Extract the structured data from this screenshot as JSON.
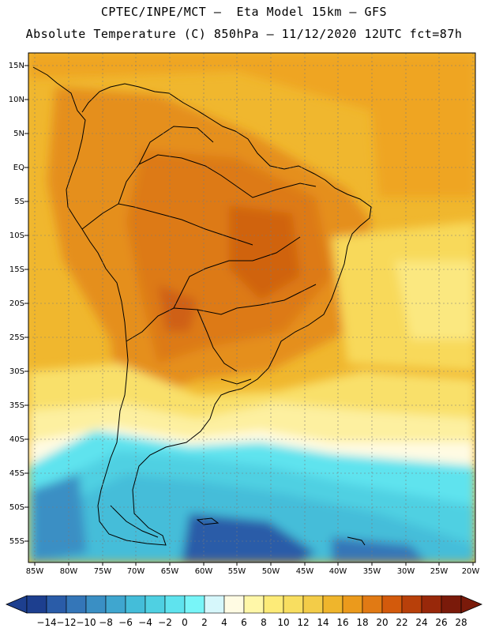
{
  "header": {
    "line1": "CPTEC/INPE/MCT —  Eta Model 15km — GFS",
    "line2": "Absolute Temperature (C) 850hPa — 11/12/2020 12UTC fct=87h"
  },
  "axes": {
    "lat_labels": [
      "15N",
      "10N",
      "5N",
      "EQ",
      "5S",
      "10S",
      "15S",
      "20S",
      "25S",
      "30S",
      "35S",
      "40S",
      "45S",
      "50S",
      "55S"
    ],
    "lon_labels": [
      "85W",
      "80W",
      "75W",
      "70W",
      "65W",
      "60W",
      "55W",
      "50W",
      "45W",
      "40W",
      "35W",
      "30W",
      "25W",
      "20W"
    ]
  },
  "legend": {
    "labels": [
      "-14",
      "-12",
      "-10",
      "-8",
      "-6",
      "-4",
      "-2",
      "0",
      "2",
      "4",
      "6",
      "8",
      "10",
      "12",
      "14",
      "16",
      "18",
      "20",
      "22",
      "24",
      "26",
      "28"
    ],
    "colors": [
      "#1d3f8f",
      "#2a5ca8",
      "#3476b8",
      "#3a8fc4",
      "#3fa6cf",
      "#44bdd9",
      "#4fd0e2",
      "#5fe3ee",
      "#78f5f8",
      "#d6f7fb",
      "#fffbe3",
      "#fff7a8",
      "#fdeb78",
      "#f8de60",
      "#f3cc48",
      "#efb52c",
      "#eb9a1c",
      "#e17a14",
      "#d35a0c",
      "#b8400a",
      "#98280a",
      "#7a1a0a"
    ]
  }
}
